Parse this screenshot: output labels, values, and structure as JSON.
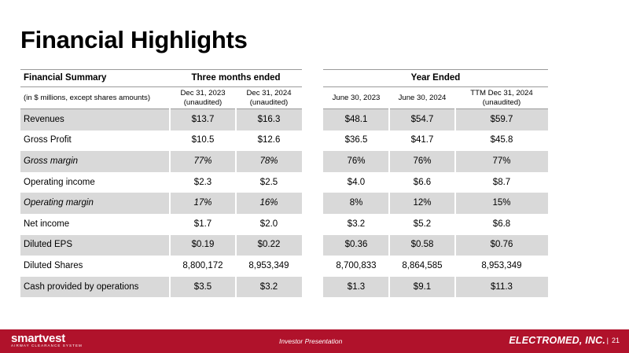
{
  "title": "Financial Highlights",
  "table": {
    "summary_label": "Financial Summary",
    "units_label": "(in $ millions, except shares amounts)",
    "group_three_months": "Three months ended",
    "group_year": "Year Ended",
    "columns": [
      {
        "line1": "Dec 31, 2023",
        "line2": "(unaudited)"
      },
      {
        "line1": "Dec 31, 2024",
        "line2": "(unaudited)"
      },
      {
        "line1": "June 30, 2023",
        "line2": ""
      },
      {
        "line1": "June 30, 2024",
        "line2": ""
      },
      {
        "line1": "TTM Dec 31, 2024",
        "line2": "(unaudited)"
      }
    ],
    "rows": [
      {
        "label": "Revenues",
        "italic": false,
        "shaded": true,
        "values": [
          "$13.7",
          "$16.3",
          "$48.1",
          "$54.7",
          "$59.7"
        ]
      },
      {
        "label": "Gross Profit",
        "italic": false,
        "shaded": false,
        "values": [
          "$10.5",
          "$12.6",
          "$36.5",
          "$41.7",
          "$45.8"
        ]
      },
      {
        "label": "Gross margin",
        "italic": true,
        "shaded": true,
        "values": [
          "77%",
          "78%",
          "76%",
          "76%",
          "77%"
        ]
      },
      {
        "label": "Operating income",
        "italic": false,
        "shaded": false,
        "values": [
          "$2.3",
          "$2.5",
          "$4.0",
          "$6.6",
          "$8.7"
        ]
      },
      {
        "label": "Operating margin",
        "italic": true,
        "shaded": true,
        "values": [
          "17%",
          "16%",
          "8%",
          "12%",
          "15%"
        ]
      },
      {
        "label": "Net income",
        "italic": false,
        "shaded": false,
        "values": [
          "$1.7",
          "$2.0",
          "$3.2",
          "$5.2",
          "$6.8"
        ]
      },
      {
        "label": "Diluted EPS",
        "italic": false,
        "shaded": true,
        "values": [
          "$0.19",
          "$0.22",
          "$0.36",
          "$0.58",
          "$0.76"
        ]
      },
      {
        "label": "Diluted Shares",
        "italic": false,
        "shaded": false,
        "values": [
          "8,800,172",
          "8,953,349",
          "8,700,833",
          "8,864,585",
          "8,953,349"
        ]
      },
      {
        "label": "Cash provided by operations",
        "italic": false,
        "shaded": true,
        "values": [
          "$3.5",
          "$3.2",
          "$1.3",
          "$9.1",
          "$11.3"
        ]
      }
    ]
  },
  "footer": {
    "left_logo": "smartvest",
    "left_tagline": "AIRWAY CLEARANCE SYSTEM",
    "center_text": "Investor Presentation",
    "right_logo": "ELECTROMED, INC.",
    "separator": "|",
    "page_number": "21"
  },
  "colors": {
    "footer": "#b0122b",
    "shade": "#d9d9d9"
  }
}
